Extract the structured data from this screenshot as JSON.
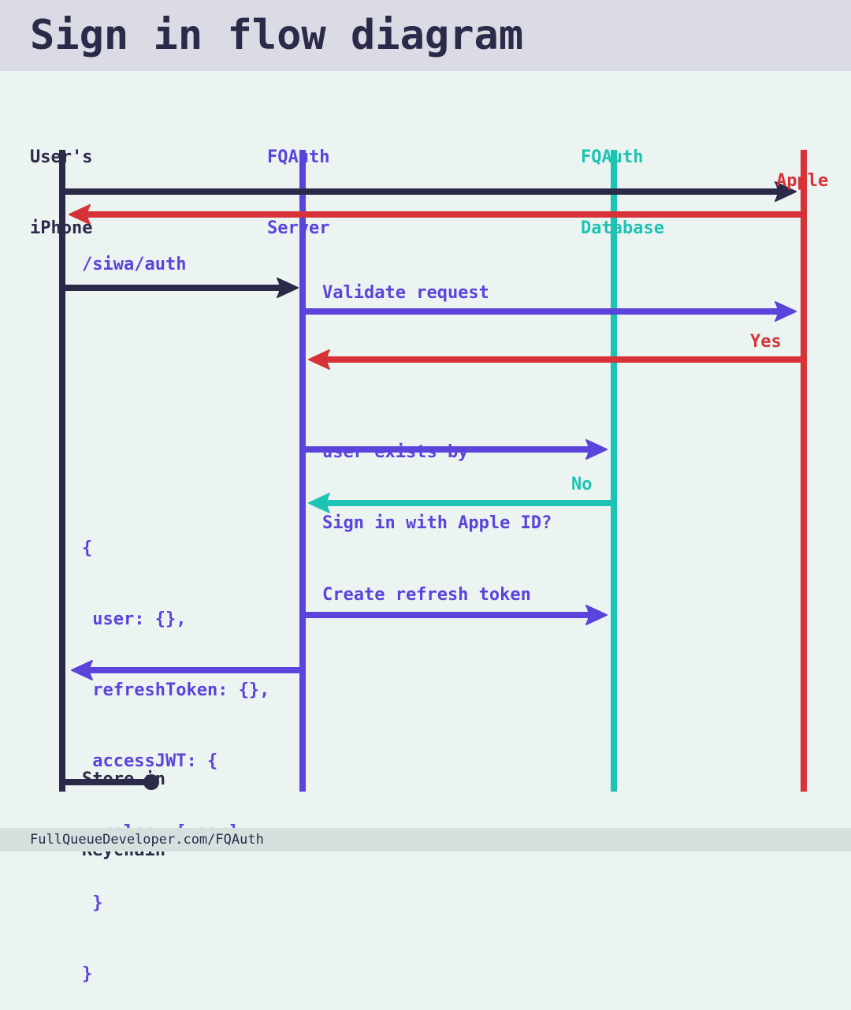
{
  "title": "Sign in flow diagram",
  "footer": "FullQueueDeveloper.com/FQAuth",
  "colors": {
    "dark": "#2c2a49",
    "purple": "#5b43db",
    "teal": "#1ec3b3",
    "red": "#d73237"
  },
  "lifelines": {
    "iphone": {
      "line1": "User's",
      "line2": "iPhone"
    },
    "server": {
      "line1": "FQAuth",
      "line2": "Server"
    },
    "database": {
      "line1": "FQAuth",
      "line2": "Database"
    },
    "apple": {
      "line1": "Apple"
    }
  },
  "messages": {
    "siwa_auth": "/siwa/auth",
    "validate_request": "Validate request",
    "yes": "Yes",
    "user_exists_line1": "user exists by",
    "user_exists_line2": "Sign in with Apple ID?",
    "no": "No",
    "create_refresh_token": "Create refresh token",
    "store_line1": "Store in",
    "store_line2": "Keychain"
  },
  "response_payload": [
    "{",
    " user: {},",
    " refreshToken: {},",
    " accessJWT: {",
    "  roles: [user]",
    " }",
    "}"
  ]
}
